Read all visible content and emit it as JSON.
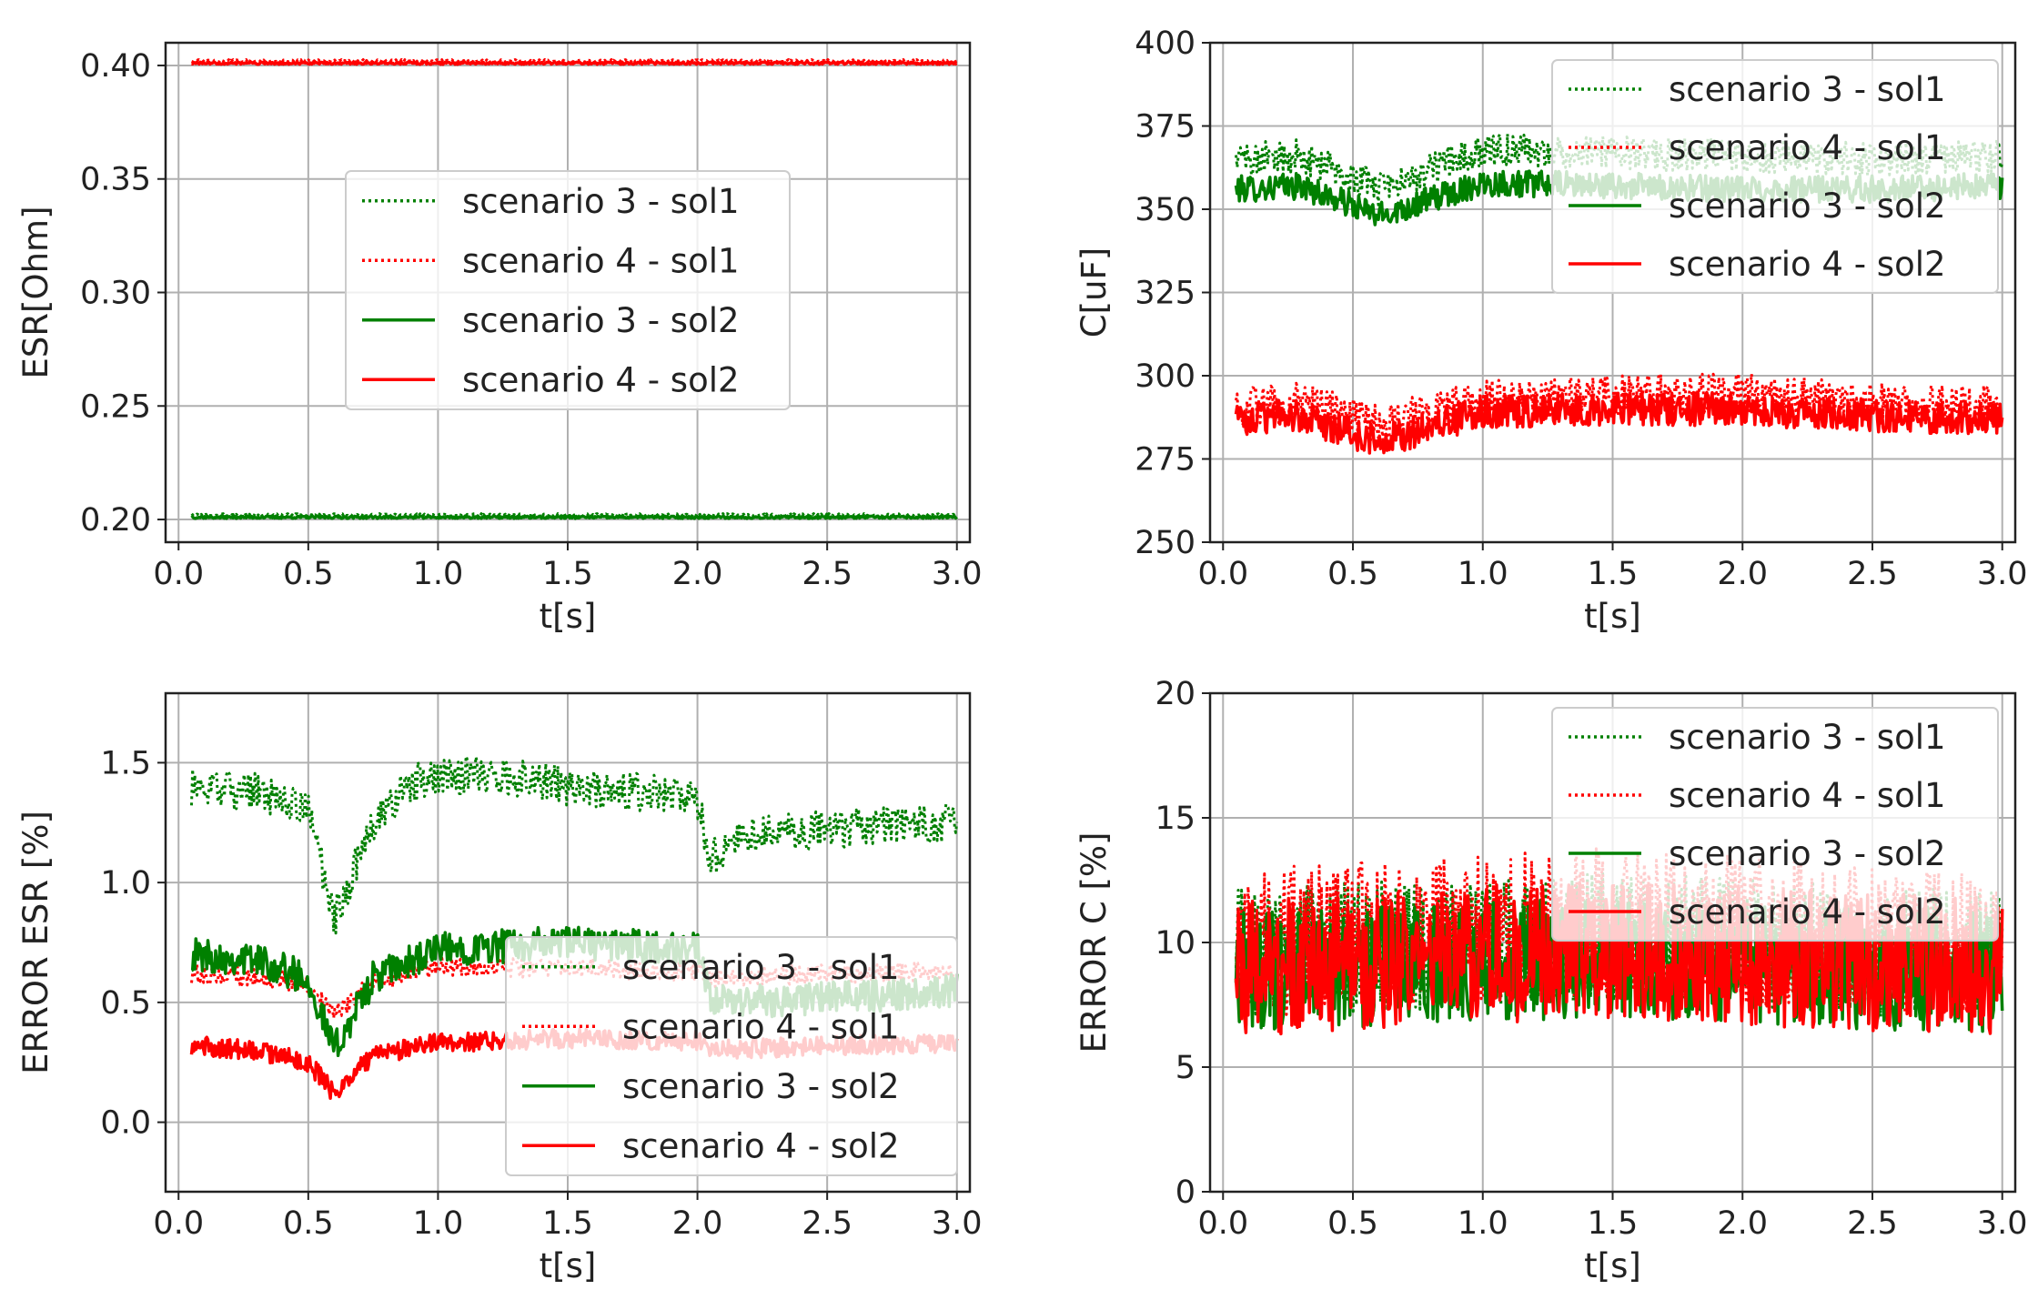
{
  "chart_data": [
    {
      "type": "line",
      "title": "",
      "xlabel": "t[s]",
      "ylabel": "ESR[Ohm]",
      "xlim": [
        -0.05,
        3.05
      ],
      "ylim": [
        0.19,
        0.41
      ],
      "xticks": [
        0.0,
        0.5,
        1.0,
        1.5,
        2.0,
        2.5,
        3.0
      ],
      "xtick_labels": [
        "0.0",
        "0.5",
        "1.0",
        "1.5",
        "2.0",
        "2.5",
        "3.0"
      ],
      "yticks": [
        0.2,
        0.25,
        0.3,
        0.35,
        0.4
      ],
      "ytick_labels": [
        "0.20",
        "0.25",
        "0.30",
        "0.35",
        "0.40"
      ],
      "grid": true,
      "legend": "center",
      "series": [
        {
          "name": "scenario 3 - sol1",
          "color": "#008000",
          "style": "dotted",
          "x": [
            0.05,
            0.5,
            1.0,
            1.5,
            2.0,
            2.5,
            3.0
          ],
          "values": [
            0.202,
            0.202,
            0.202,
            0.202,
            0.202,
            0.202,
            0.202
          ]
        },
        {
          "name": "scenario 4 - sol1",
          "color": "#ff0000",
          "style": "dotted",
          "x": [
            0.05,
            0.5,
            1.0,
            1.5,
            2.0,
            2.5,
            3.0
          ],
          "values": [
            0.402,
            0.402,
            0.402,
            0.402,
            0.402,
            0.402,
            0.402
          ]
        },
        {
          "name": "scenario 3 - sol2",
          "color": "#008000",
          "style": "solid",
          "x": [
            0.05,
            0.5,
            1.0,
            1.5,
            2.0,
            2.5,
            3.0
          ],
          "values": [
            0.201,
            0.201,
            0.201,
            0.201,
            0.201,
            0.201,
            0.201
          ]
        },
        {
          "name": "scenario 4 - sol2",
          "color": "#ff0000",
          "style": "solid",
          "x": [
            0.05,
            0.5,
            1.0,
            1.5,
            2.0,
            2.5,
            3.0
          ],
          "values": [
            0.401,
            0.401,
            0.401,
            0.401,
            0.401,
            0.401,
            0.401
          ]
        }
      ]
    },
    {
      "type": "line",
      "title": "",
      "xlabel": "t[s]",
      "ylabel": "C[uF]",
      "xlim": [
        -0.05,
        3.05
      ],
      "ylim": [
        250,
        400
      ],
      "xticks": [
        0.0,
        0.5,
        1.0,
        1.5,
        2.0,
        2.5,
        3.0
      ],
      "xtick_labels": [
        "0.0",
        "0.5",
        "1.0",
        "1.5",
        "2.0",
        "2.5",
        "3.0"
      ],
      "yticks": [
        250,
        275,
        300,
        325,
        350,
        375,
        400
      ],
      "ytick_labels": [
        "250",
        "275",
        "300",
        "325",
        "350",
        "375",
        "400"
      ],
      "grid": true,
      "legend": "upper right",
      "series": [
        {
          "name": "scenario 3 - sol1",
          "color": "#008000",
          "style": "dotted",
          "x": [
            0.05,
            0.3,
            0.6,
            1.0,
            1.5,
            2.0,
            2.5,
            3.0
          ],
          "values": [
            365,
            366,
            356,
            368,
            367,
            366,
            365,
            366
          ]
        },
        {
          "name": "scenario 4 - sol1",
          "color": "#ff0000",
          "style": "dotted",
          "x": [
            0.05,
            0.3,
            0.6,
            1.0,
            1.5,
            2.0,
            2.5,
            3.0
          ],
          "values": [
            291,
            292,
            285,
            293,
            294,
            295,
            292,
            291
          ]
        },
        {
          "name": "scenario 3 - sol2",
          "color": "#008000",
          "style": "solid",
          "x": [
            0.05,
            0.3,
            0.6,
            1.0,
            1.5,
            2.0,
            2.5,
            3.0
          ],
          "values": [
            356,
            357,
            348,
            358,
            357,
            356,
            356,
            357
          ]
        },
        {
          "name": "scenario 4 - sol2",
          "color": "#ff0000",
          "style": "solid",
          "x": [
            0.05,
            0.3,
            0.6,
            1.0,
            1.5,
            2.0,
            2.5,
            3.0
          ],
          "values": [
            287,
            288,
            280,
            289,
            290,
            290,
            288,
            287
          ]
        }
      ]
    },
    {
      "type": "line",
      "title": "",
      "xlabel": "t[s]",
      "ylabel": "ERROR ESR [%]",
      "xlim": [
        -0.05,
        3.05
      ],
      "ylim": [
        -0.29,
        1.79
      ],
      "xticks": [
        0.0,
        0.5,
        1.0,
        1.5,
        2.0,
        2.5,
        3.0
      ],
      "xtick_labels": [
        "0.0",
        "0.5",
        "1.0",
        "1.5",
        "2.0",
        "2.5",
        "3.0"
      ],
      "yticks": [
        0.0,
        0.5,
        1.0,
        1.5
      ],
      "ytick_labels": [
        "0.0",
        "0.5",
        "1.0",
        "1.5"
      ],
      "grid": true,
      "legend": "lower right",
      "series": [
        {
          "name": "scenario 3 - sol1",
          "color": "#008000",
          "style": "dotted",
          "x": [
            0.05,
            0.3,
            0.5,
            0.6,
            0.75,
            0.9,
            1.0,
            1.25,
            1.5,
            1.75,
            2.0,
            2.05,
            2.2,
            2.5,
            3.0
          ],
          "values": [
            1.4,
            1.38,
            1.3,
            0.85,
            1.25,
            1.42,
            1.45,
            1.45,
            1.4,
            1.38,
            1.35,
            1.1,
            1.2,
            1.22,
            1.25
          ]
        },
        {
          "name": "scenario 4 - sol1",
          "color": "#ff0000",
          "style": "dotted",
          "x": [
            0.05,
            0.3,
            0.5,
            0.6,
            0.75,
            1.0,
            1.5,
            2.0,
            2.05,
            2.5,
            3.0
          ],
          "values": [
            0.62,
            0.61,
            0.58,
            0.45,
            0.58,
            0.65,
            0.64,
            0.63,
            0.6,
            0.62,
            0.63
          ]
        },
        {
          "name": "scenario 3 - sol2",
          "color": "#008000",
          "style": "solid",
          "x": [
            0.05,
            0.3,
            0.5,
            0.6,
            0.75,
            1.0,
            1.5,
            2.0,
            2.05,
            2.5,
            3.0
          ],
          "values": [
            0.7,
            0.68,
            0.6,
            0.3,
            0.6,
            0.72,
            0.75,
            0.72,
            0.5,
            0.52,
            0.55
          ]
        },
        {
          "name": "scenario 4 - sol2",
          "color": "#ff0000",
          "style": "solid",
          "x": [
            0.05,
            0.3,
            0.5,
            0.6,
            0.75,
            1.0,
            1.5,
            2.0,
            2.05,
            2.5,
            3.0
          ],
          "values": [
            0.32,
            0.3,
            0.25,
            0.12,
            0.28,
            0.33,
            0.35,
            0.34,
            0.3,
            0.32,
            0.33
          ]
        }
      ]
    },
    {
      "type": "line",
      "title": "",
      "xlabel": "t[s]",
      "ylabel": "ERROR C [%]",
      "xlim": [
        -0.05,
        3.05
      ],
      "ylim": [
        0,
        20
      ],
      "xticks": [
        0.0,
        0.5,
        1.0,
        1.5,
        2.0,
        2.5,
        3.0
      ],
      "xtick_labels": [
        "0.0",
        "0.5",
        "1.0",
        "1.5",
        "2.0",
        "2.5",
        "3.0"
      ],
      "yticks": [
        0,
        5,
        10,
        15,
        20
      ],
      "ytick_labels": [
        "0",
        "5",
        "10",
        "15",
        "20"
      ],
      "grid": true,
      "legend": "upper right",
      "series": [
        {
          "name": "scenario 3 - sol1",
          "color": "#008000",
          "style": "dotted",
          "x": [
            0.05,
            0.5,
            1.0,
            1.5,
            2.0,
            2.5,
            3.0
          ],
          "values": [
            9.5,
            9.8,
            10.0,
            10.2,
            10.0,
            9.6,
            9.5
          ]
        },
        {
          "name": "scenario 4 - sol1",
          "color": "#ff0000",
          "style": "dotted",
          "x": [
            0.05,
            0.5,
            1.0,
            1.5,
            2.0,
            2.5,
            3.0
          ],
          "values": [
            10.0,
            10.2,
            10.5,
            10.8,
            10.5,
            10.0,
            9.8
          ]
        },
        {
          "name": "scenario 3 - sol2",
          "color": "#008000",
          "style": "solid",
          "x": [
            0.05,
            0.5,
            1.0,
            1.5,
            2.0,
            2.5,
            3.0
          ],
          "values": [
            8.8,
            9.0,
            9.2,
            9.4,
            9.2,
            8.9,
            8.8
          ]
        },
        {
          "name": "scenario 4 - sol2",
          "color": "#ff0000",
          "style": "solid",
          "x": [
            0.05,
            0.5,
            1.0,
            1.5,
            2.0,
            2.5,
            3.0
          ],
          "values": [
            9.0,
            9.2,
            9.5,
            9.8,
            9.5,
            9.2,
            9.0
          ]
        }
      ]
    }
  ]
}
